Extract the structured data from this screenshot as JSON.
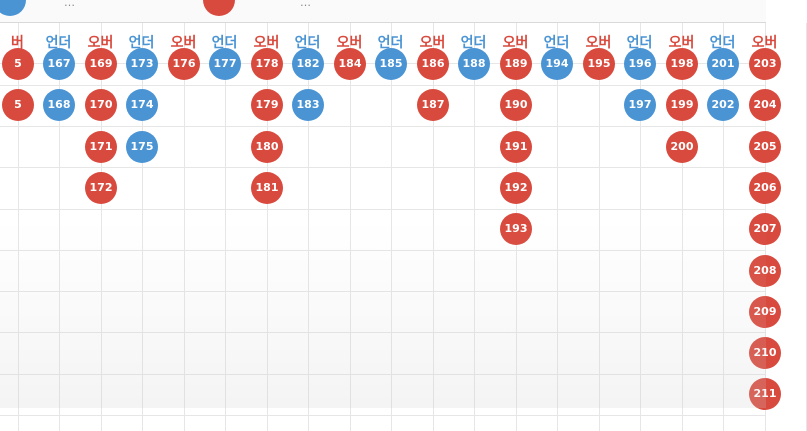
{
  "colors": {
    "over": "#d94a3e",
    "under": "#4a94d4",
    "grid": "#e6e6e6"
  },
  "legend": {
    "under_text": "…",
    "over_text": "…"
  },
  "columns": [
    {
      "label": "버",
      "type": "over",
      "balls": [
        "5",
        "5"
      ]
    },
    {
      "label": "언더",
      "type": "under",
      "balls": [
        "167",
        "168"
      ]
    },
    {
      "label": "오버",
      "type": "over",
      "balls": [
        "169",
        "170",
        "171",
        "172"
      ]
    },
    {
      "label": "언더",
      "type": "under",
      "balls": [
        "173",
        "174",
        "175"
      ]
    },
    {
      "label": "오버",
      "type": "over",
      "balls": [
        "176"
      ]
    },
    {
      "label": "언더",
      "type": "under",
      "balls": [
        "177"
      ]
    },
    {
      "label": "오버",
      "type": "over",
      "balls": [
        "178",
        "179",
        "180",
        "181"
      ]
    },
    {
      "label": "언더",
      "type": "under",
      "balls": [
        "182",
        "183"
      ]
    },
    {
      "label": "오버",
      "type": "over",
      "balls": [
        "184"
      ]
    },
    {
      "label": "언더",
      "type": "under",
      "balls": [
        "185"
      ]
    },
    {
      "label": "오버",
      "type": "over",
      "balls": [
        "186",
        "187"
      ]
    },
    {
      "label": "언더",
      "type": "under",
      "balls": [
        "188"
      ]
    },
    {
      "label": "오버",
      "type": "over",
      "balls": [
        "189",
        "190",
        "191",
        "192",
        "193"
      ]
    },
    {
      "label": "언더",
      "type": "under",
      "balls": [
        "194"
      ]
    },
    {
      "label": "오버",
      "type": "over",
      "balls": [
        "195"
      ]
    },
    {
      "label": "언더",
      "type": "under",
      "balls": [
        "196",
        "197"
      ]
    },
    {
      "label": "오버",
      "type": "over",
      "balls": [
        "198",
        "199",
        "200"
      ]
    },
    {
      "label": "언더",
      "type": "under",
      "balls": [
        "201",
        "202"
      ]
    },
    {
      "label": "오버",
      "type": "over",
      "balls": [
        "203",
        "204",
        "205",
        "206",
        "207",
        "208",
        "209",
        "210",
        "211"
      ]
    }
  ]
}
